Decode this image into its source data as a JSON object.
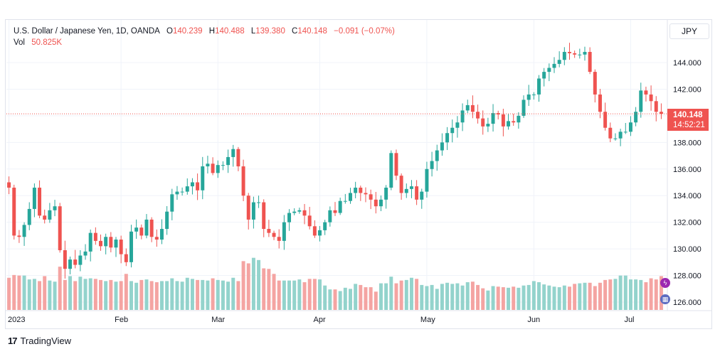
{
  "legend": {
    "symbol_name": "U.S. Dollar / Japanese Yen, 1D, OANDA",
    "o_label": "O",
    "o_value": "140.239",
    "h_label": "H",
    "h_value": "140.488",
    "l_label": "L",
    "l_value": "139.380",
    "c_label": "C",
    "c_value": "140.148",
    "change": "−0.091 (−0.07%)",
    "vol_label": "Vol",
    "vol_value": "50.825K"
  },
  "currency_button": "JPY",
  "last_price": {
    "price": "140.148",
    "countdown": "14:52:21"
  },
  "branding": {
    "logo_mark": "17",
    "logo_text": "TradingView"
  },
  "colors": {
    "up": "#26a69a",
    "down": "#ef5350",
    "up_vol": "#93d3cc",
    "down_vol": "#f4a4a2",
    "grid": "#f0f3fa"
  },
  "chart_data": {
    "type": "candlestick",
    "y_ticks": [
      "144.000",
      "142.000",
      "140.000",
      "138.000",
      "136.000",
      "134.000",
      "132.000",
      "130.000",
      "128.000",
      "126.000"
    ],
    "x_ticks": [
      "2023",
      "Feb",
      "Mar",
      "Apr",
      "May",
      "Jun",
      "Jul"
    ],
    "last_close": 140.148,
    "closes": [
      134.6,
      131.0,
      130.9,
      131.8,
      133.0,
      134.6,
      132.5,
      132.2,
      132.9,
      133.2,
      129.9,
      128.5,
      129.2,
      128.8,
      129.5,
      129.8,
      131.2,
      130.6,
      130.2,
      130.9,
      130.1,
      130.7,
      129.6,
      129.0,
      131.3,
      131.6,
      131.0,
      132.2,
      130.9,
      130.7,
      131.5,
      132.8,
      134.1,
      134.3,
      134.3,
      134.7,
      135.0,
      134.4,
      136.2,
      136.4,
      135.7,
      136.3,
      136.3,
      136.9,
      137.5,
      136.2,
      134.0,
      132.2,
      133.5,
      133.5,
      131.5,
      131.2,
      130.9,
      130.6,
      132.0,
      132.7,
      132.8,
      132.9,
      132.5,
      131.7,
      131.0,
      131.4,
      132.0,
      132.9,
      132.7,
      133.6,
      133.6,
      134.2,
      134.6,
      134.2,
      134.1,
      133.7,
      133.2,
      133.7,
      134.6,
      137.2,
      135.5,
      134.2,
      134.5,
      134.7,
      133.7,
      134.3,
      136.0,
      136.6,
      137.4,
      138.0,
      138.7,
      139.1,
      139.5,
      140.4,
      140.8,
      140.3,
      139.8,
      139.2,
      139.4,
      140.2,
      140.1,
      139.2,
      139.6,
      139.5,
      140.0,
      141.2,
      141.6,
      141.6,
      142.8,
      143.3,
      143.6,
      143.9,
      144.2,
      144.8,
      144.7,
      144.6,
      144.6,
      144.8,
      143.3,
      141.6,
      140.3,
      139.1,
      138.3,
      138.3,
      138.8,
      138.8,
      139.5,
      140.3,
      141.9,
      141.6,
      141.1,
      140.3,
      140.15
    ],
    "volumes_k": [
      58,
      63,
      62,
      62,
      55,
      56,
      52,
      61,
      53,
      51,
      78,
      54,
      61,
      52,
      60,
      56,
      57,
      56,
      54,
      52,
      54,
      51,
      52,
      65,
      52,
      49,
      54,
      55,
      52,
      50,
      52,
      52,
      57,
      52,
      51,
      58,
      56,
      54,
      54,
      53,
      57,
      54,
      53,
      51,
      58,
      52,
      88,
      84,
      94,
      90,
      75,
      74,
      65,
      53,
      53,
      53,
      53,
      55,
      50,
      56,
      56,
      55,
      44,
      37,
      37,
      34,
      40,
      38,
      47,
      45,
      41,
      41,
      33,
      48,
      48,
      60,
      48,
      53,
      54,
      58,
      56,
      45,
      43,
      45,
      38,
      47,
      49,
      47,
      48,
      44,
      50,
      51,
      45,
      39,
      35,
      43,
      42,
      41,
      40,
      42,
      40,
      44,
      45,
      52,
      50,
      46,
      44,
      42,
      41,
      44,
      42,
      47,
      48,
      49,
      49,
      43,
      49,
      54,
      55,
      56,
      62,
      62,
      55,
      55,
      54,
      50,
      57,
      55,
      61,
      60
    ]
  }
}
